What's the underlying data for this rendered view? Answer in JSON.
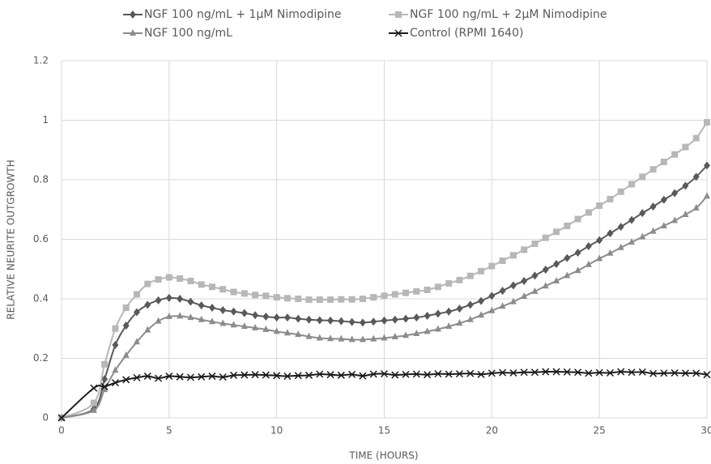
{
  "chart_data": {
    "type": "line",
    "xlabel": "TIME (HOURS)",
    "ylabel": "RELATIVE NEURITE OUTGROWTH",
    "x": [
      0,
      1.5,
      2,
      2.5,
      3,
      3.5,
      4,
      4.5,
      5,
      5.5,
      6,
      6.5,
      7,
      7.5,
      8,
      8.5,
      9,
      9.5,
      10,
      10.5,
      11,
      11.5,
      12,
      12.5,
      13,
      13.5,
      14,
      14.5,
      15,
      15.5,
      16,
      16.5,
      17,
      17.5,
      18,
      18.5,
      19,
      19.5,
      20,
      20.5,
      21,
      21.5,
      22,
      22.5,
      23,
      23.5,
      24,
      24.5,
      25,
      25.5,
      26,
      26.5,
      27,
      27.5,
      28,
      28.5,
      29,
      29.5,
      30
    ],
    "series": [
      {
        "name": "NGF 100 ng/mL + 1μM Nimodipine",
        "color": "#595959",
        "marker": "diamond",
        "values": [
          0,
          0.03,
          0.13,
          0.245,
          0.31,
          0.355,
          0.38,
          0.395,
          0.403,
          0.4,
          0.39,
          0.378,
          0.37,
          0.362,
          0.357,
          0.352,
          0.345,
          0.34,
          0.337,
          0.337,
          0.333,
          0.33,
          0.328,
          0.327,
          0.325,
          0.322,
          0.32,
          0.323,
          0.327,
          0.33,
          0.333,
          0.337,
          0.343,
          0.35,
          0.357,
          0.367,
          0.38,
          0.393,
          0.41,
          0.427,
          0.445,
          0.46,
          0.478,
          0.498,
          0.517,
          0.537,
          0.555,
          0.577,
          0.597,
          0.62,
          0.642,
          0.665,
          0.688,
          0.71,
          0.733,
          0.755,
          0.78,
          0.81,
          0.848
        ]
      },
      {
        "name": "NGF 100 ng/mL + 2μM Nimodipine",
        "color": "#b7b7b7",
        "marker": "square",
        "values": [
          0,
          0.05,
          0.18,
          0.3,
          0.37,
          0.415,
          0.45,
          0.465,
          0.472,
          0.468,
          0.46,
          0.448,
          0.44,
          0.432,
          0.423,
          0.418,
          0.413,
          0.41,
          0.405,
          0.402,
          0.4,
          0.397,
          0.397,
          0.397,
          0.398,
          0.398,
          0.4,
          0.405,
          0.41,
          0.415,
          0.42,
          0.425,
          0.43,
          0.44,
          0.452,
          0.463,
          0.477,
          0.493,
          0.51,
          0.528,
          0.546,
          0.565,
          0.585,
          0.605,
          0.625,
          0.645,
          0.668,
          0.69,
          0.713,
          0.735,
          0.76,
          0.785,
          0.81,
          0.835,
          0.86,
          0.885,
          0.91,
          0.94,
          0.993
        ]
      },
      {
        "name": "NGF 100 ng/mL",
        "color": "#8c8c8c",
        "marker": "triangle",
        "values": [
          0,
          0.025,
          0.095,
          0.16,
          0.21,
          0.255,
          0.295,
          0.325,
          0.34,
          0.342,
          0.337,
          0.33,
          0.323,
          0.317,
          0.312,
          0.307,
          0.302,
          0.297,
          0.29,
          0.285,
          0.28,
          0.273,
          0.268,
          0.266,
          0.265,
          0.263,
          0.263,
          0.265,
          0.268,
          0.272,
          0.277,
          0.283,
          0.29,
          0.298,
          0.307,
          0.318,
          0.33,
          0.345,
          0.36,
          0.375,
          0.39,
          0.408,
          0.425,
          0.443,
          0.46,
          0.478,
          0.495,
          0.515,
          0.535,
          0.553,
          0.572,
          0.59,
          0.608,
          0.627,
          0.645,
          0.663,
          0.683,
          0.705,
          0.745
        ]
      },
      {
        "name": "Control (RPMI 1640)",
        "color": "#1a1a1a",
        "marker": "x",
        "values": [
          0,
          0.1,
          0.105,
          0.118,
          0.128,
          0.135,
          0.14,
          0.133,
          0.14,
          0.138,
          0.136,
          0.138,
          0.14,
          0.137,
          0.143,
          0.144,
          0.145,
          0.144,
          0.142,
          0.14,
          0.142,
          0.143,
          0.147,
          0.145,
          0.143,
          0.146,
          0.141,
          0.147,
          0.148,
          0.144,
          0.146,
          0.147,
          0.145,
          0.148,
          0.147,
          0.148,
          0.149,
          0.146,
          0.15,
          0.152,
          0.151,
          0.153,
          0.153,
          0.155,
          0.155,
          0.154,
          0.153,
          0.15,
          0.152,
          0.151,
          0.155,
          0.153,
          0.154,
          0.149,
          0.15,
          0.151,
          0.15,
          0.15,
          0.145
        ]
      }
    ],
    "xlim": [
      0,
      30
    ],
    "xticks": [
      0,
      5,
      10,
      15,
      20,
      25,
      30
    ],
    "ylim": [
      0,
      1.2
    ],
    "yticks": [
      0,
      0.2,
      0.4,
      0.6,
      0.8,
      1,
      1.2
    ],
    "grid": true,
    "legend": "top"
  }
}
